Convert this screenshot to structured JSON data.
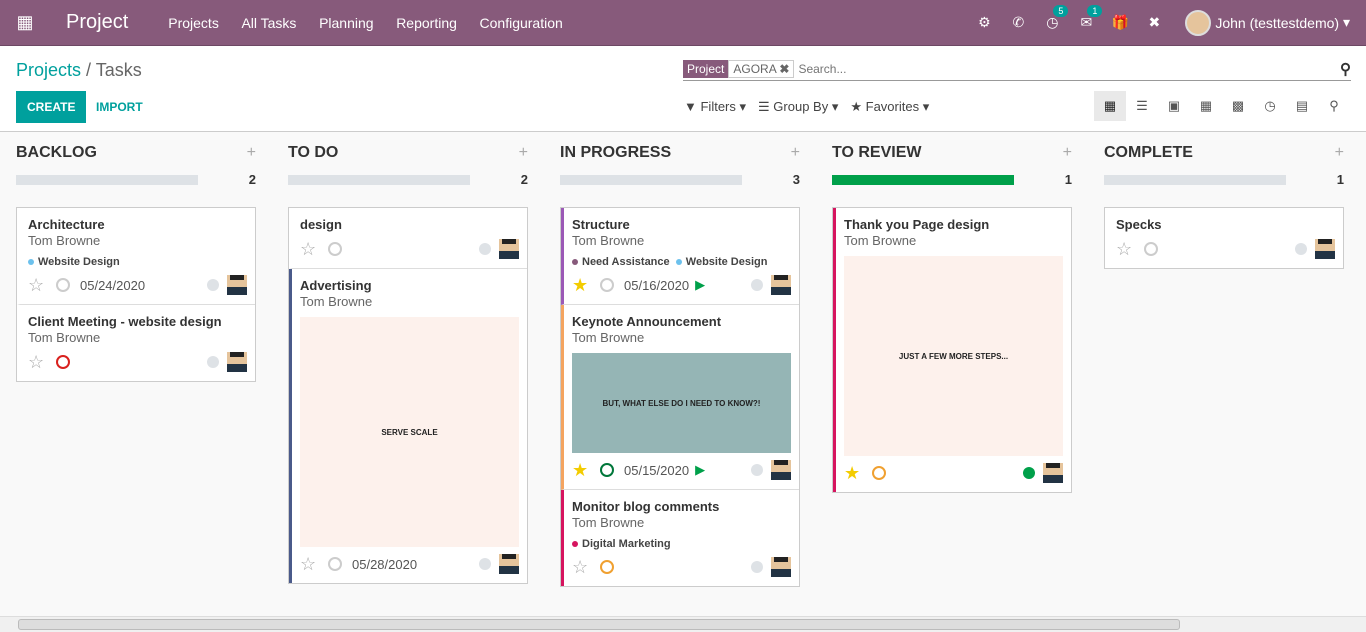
{
  "nav": {
    "app": "Project",
    "menu": [
      "Projects",
      "All Tasks",
      "Planning",
      "Reporting",
      "Configuration"
    ],
    "activity_count": "5",
    "message_count": "1",
    "user": "John (testtestdemo)"
  },
  "breadcrumb": {
    "parent": "Projects",
    "sep": "/",
    "current": "Tasks"
  },
  "buttons": {
    "create": "CREATE",
    "import": "IMPORT"
  },
  "search": {
    "facet_label": "Project",
    "facet_value": "AGORA",
    "placeholder": "Search..."
  },
  "filters": {
    "filters": "Filters",
    "group_by": "Group By",
    "favorites": "Favorites"
  },
  "colors": {
    "brand": "#875a7b",
    "accent": "#00a09d",
    "green": "#00a04a"
  },
  "columns": [
    {
      "name": "BACKLOG",
      "count": "2",
      "cards": [
        {
          "title": "Architecture",
          "user": "Tom Browne",
          "tags": [
            {
              "label": "Website Design",
              "color": "#6cc1ed"
            }
          ],
          "date": "05/24/2020",
          "starred": false
        },
        {
          "title": "Client Meeting - website design",
          "user": "Tom Browne",
          "tags": [],
          "date": "",
          "starred": false,
          "clock": "#d9211e"
        }
      ]
    },
    {
      "name": "TO DO",
      "count": "2",
      "cards": [
        {
          "title": "design",
          "user": "",
          "tags": [],
          "date": "",
          "starred": false
        },
        {
          "title": "Advertising",
          "user": "Tom Browne",
          "tags": [],
          "date": "05/28/2020",
          "starred": false,
          "border": "#4a5a8a",
          "image": "SERVE SCALE"
        }
      ]
    },
    {
      "name": "IN PROGRESS",
      "count": "3",
      "cards": [
        {
          "title": "Structure",
          "user": "Tom Browne",
          "tags": [
            {
              "label": "Need Assistance",
              "color": "#875a7b"
            },
            {
              "label": "Website Design",
              "color": "#6cc1ed"
            }
          ],
          "date": "05/16/2020",
          "starred": true,
          "border": "#9b59b6",
          "play": true
        },
        {
          "title": "Keynote Announcement",
          "user": "Tom Browne",
          "tags": [],
          "date": "05/15/2020",
          "starred": true,
          "border": "#f4a460",
          "play": true,
          "clock": "#00773a",
          "image": "BUT, WHAT ELSE DO I NEED TO KNOW?!"
        },
        {
          "title": "Monitor blog comments",
          "user": "Tom Browne",
          "tags": [
            {
              "label": "Digital Marketing",
              "color": "#d6145f"
            }
          ],
          "date": "",
          "starred": false,
          "border": "#d6145f",
          "clock": "#f0a030"
        }
      ]
    },
    {
      "name": "TO REVIEW",
      "count": "1",
      "progress": "green",
      "cards": [
        {
          "title": "Thank you Page design",
          "user": "Tom Browne",
          "tags": [],
          "date": "",
          "starred": true,
          "border": "#d6145f",
          "clock": "#f0a030",
          "status": "#00a04a",
          "image": "JUST A FEW MORE STEPS..."
        }
      ]
    },
    {
      "name": "COMPLETE",
      "count": "1",
      "cards": [
        {
          "title": "Specks",
          "user": "",
          "tags": [],
          "date": "",
          "starred": false
        }
      ]
    }
  ]
}
